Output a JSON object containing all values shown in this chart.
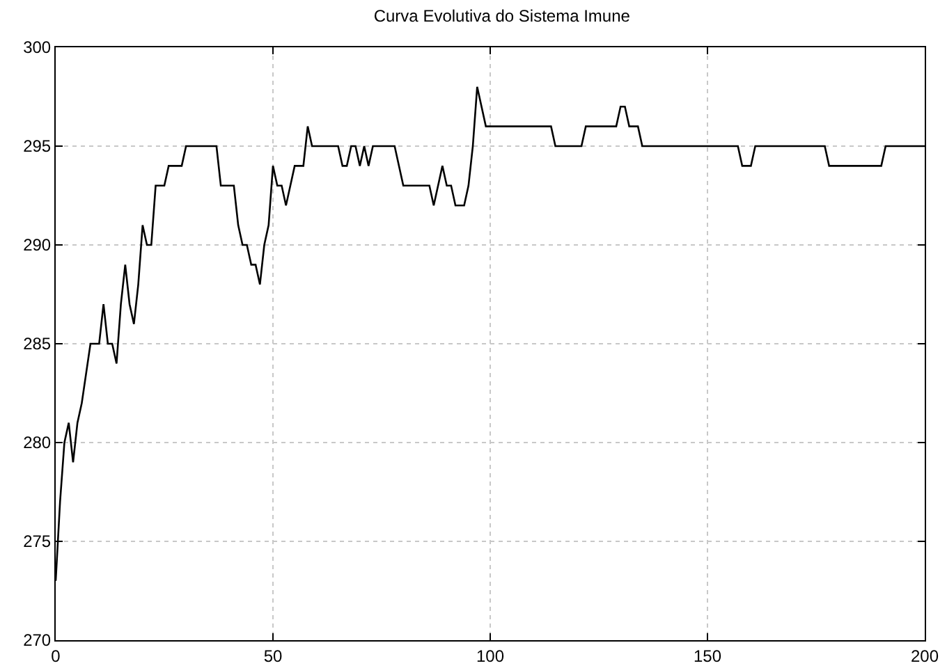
{
  "chart_data": {
    "type": "line",
    "title": "Curva Evolutiva do Sistema Imune",
    "x": [
      0,
      1,
      2,
      3,
      4,
      5,
      6,
      8,
      10,
      11,
      12,
      13,
      14,
      15,
      16,
      17,
      18,
      19,
      20,
      21,
      22,
      23,
      25,
      26,
      29,
      30,
      37,
      38,
      41,
      42,
      43,
      44,
      45,
      46,
      47,
      48,
      49,
      50,
      51,
      52,
      53,
      55,
      57,
      58,
      59,
      65,
      66,
      67,
      68,
      69,
      70,
      71,
      72,
      73,
      78,
      80,
      86,
      87,
      89,
      90,
      91,
      92,
      94,
      95,
      96,
      97,
      99,
      114,
      115,
      121,
      122,
      129,
      130,
      131,
      132,
      134,
      135,
      157,
      158,
      160,
      161,
      177,
      178,
      190,
      191,
      200
    ],
    "series": [
      {
        "color": "#000000",
        "values": [
          273,
          277,
          280,
          281,
          279,
          281,
          282,
          285,
          285,
          287,
          285,
          285,
          284,
          287,
          289,
          287,
          286,
          288,
          291,
          290,
          290,
          293,
          293,
          294,
          294,
          295,
          295,
          293,
          293,
          291,
          290,
          290,
          289,
          289,
          288,
          290,
          291,
          294,
          293,
          293,
          292,
          294,
          294,
          296,
          295,
          295,
          294,
          294,
          295,
          295,
          294,
          295,
          294,
          295,
          295,
          293,
          293,
          292,
          294,
          293,
          293,
          292,
          292,
          293,
          295,
          298,
          296,
          296,
          295,
          295,
          296,
          296,
          297,
          297,
          296,
          296,
          295,
          295,
          294,
          294,
          295,
          295,
          294,
          294,
          295,
          295
        ]
      }
    ],
    "xlim": [
      0,
      200
    ],
    "xticks": [
      0,
      50,
      100,
      150,
      200
    ],
    "ylim": [
      270,
      300
    ],
    "yticks": [
      270,
      275,
      280,
      285,
      290,
      295,
      300
    ],
    "grid": true,
    "line_style": "solid",
    "marker": "none"
  }
}
